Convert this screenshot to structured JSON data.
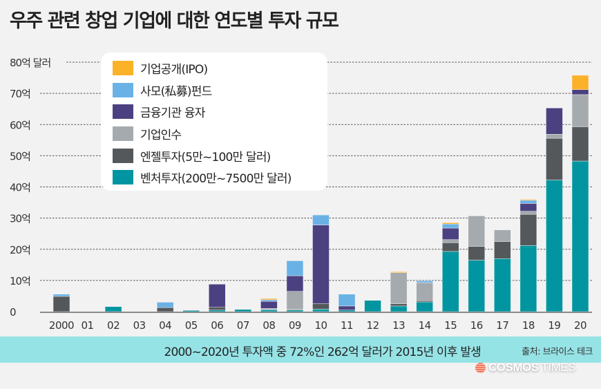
{
  "title": "우주 관련 창업 기업에 대한 연도별 투자 규모",
  "legend": [
    {
      "label": "기업공개(IPO)",
      "color": "#fbb128"
    },
    {
      "label": "사모(私募)펀드",
      "color": "#6ab2e6"
    },
    {
      "label": "금융기관 융자",
      "color": "#4b4180"
    },
    {
      "label": "기업인수",
      "color": "#a4aaad"
    },
    {
      "label": "엔젤투자(5만~100만 달러)",
      "color": "#54585b"
    },
    {
      "label": "벤처투자(200만~7500만 달러)",
      "color": "#0095a0"
    }
  ],
  "banner": {
    "text": "2000~2020년 투자액 중 72%인 262억 달러가 2015년 이후 발생",
    "source": "출처: 브라이스 테크"
  },
  "logo": {
    "bold": "COSMOS",
    "thin": " TIMES"
  },
  "chart_data": {
    "type": "bar",
    "stacked": true,
    "title": "우주 관련 창업 기업에 대한 연도별 투자 규모",
    "xlabel": "",
    "ylabel": "억 달러",
    "ylim": [
      0,
      80
    ],
    "yticks": [
      0,
      10,
      20,
      30,
      40,
      50,
      60,
      70,
      80
    ],
    "ytick_labels": [
      "0",
      "10억",
      "20억",
      "30억",
      "40억",
      "50억",
      "60억",
      "70억",
      "80억 달러"
    ],
    "grid": true,
    "legend_position": "top-left",
    "categories": [
      "2000",
      "01",
      "02",
      "03",
      "04",
      "05",
      "06",
      "07",
      "08",
      "09",
      "10",
      "11",
      "12",
      "13",
      "14",
      "15",
      "16",
      "17",
      "18",
      "19",
      "20"
    ],
    "series": [
      {
        "name": "벤처투자(200만~7500만 달러)",
        "color": "#0095a0",
        "values": [
          0,
          0,
          1.6,
          0,
          0,
          0.4,
          0.5,
          0.7,
          0.6,
          0.5,
          0.8,
          0.5,
          3.6,
          1.8,
          3.1,
          19.3,
          16.5,
          17.0,
          21.2,
          42.2,
          48.3
        ]
      },
      {
        "name": "엔젤투자(5만~100만 달러)",
        "color": "#54585b",
        "values": [
          4.9,
          0,
          0,
          0,
          1.3,
          0,
          0.9,
          0,
          0.2,
          0.2,
          1.8,
          0,
          0,
          0.7,
          0.4,
          2.8,
          4.4,
          5.5,
          10.0,
          13.4,
          11.0
        ]
      },
      {
        "name": "기업인수",
        "color": "#a4aaad",
        "values": [
          0,
          0,
          0,
          0,
          0,
          0,
          0,
          0,
          0.2,
          5.8,
          0,
          0,
          0,
          10.0,
          5.8,
          1.0,
          9.8,
          3.7,
          1.0,
          1.3,
          10.3
        ]
      },
      {
        "name": "금융기관 융자",
        "color": "#4b4180",
        "values": [
          0,
          0,
          0,
          0,
          0,
          0,
          7.4,
          0,
          2.3,
          5.0,
          25.2,
          1.3,
          0,
          0,
          0,
          3.7,
          0,
          0,
          2.5,
          8.4,
          1.6
        ]
      },
      {
        "name": "사모(私募)펀드",
        "color": "#6ab2e6",
        "values": [
          0.7,
          0,
          0,
          0,
          1.7,
          0,
          0,
          0,
          0.5,
          4.8,
          3.2,
          3.8,
          0,
          0,
          0.6,
          1.3,
          0,
          0,
          1.0,
          0,
          0
        ]
      },
      {
        "name": "기업공개(IPO)",
        "color": "#fbb128",
        "values": [
          0,
          0,
          0,
          0,
          0,
          0,
          0,
          0,
          0.4,
          0,
          0,
          0,
          0,
          0.3,
          0,
          0.4,
          0,
          0,
          0.3,
          0,
          4.6
        ]
      }
    ]
  }
}
